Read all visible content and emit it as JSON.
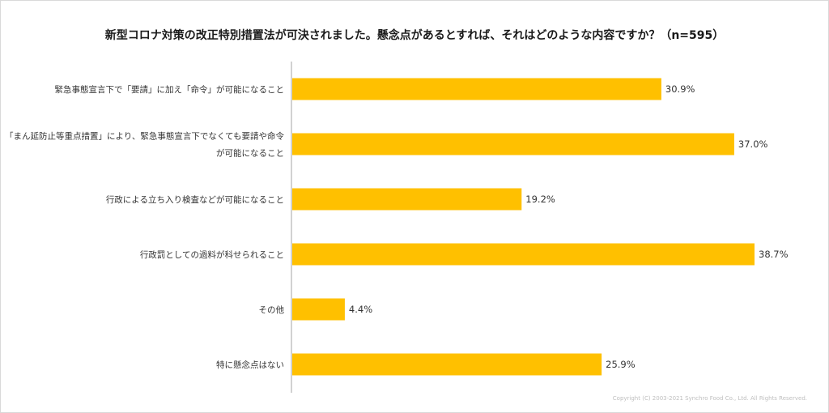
{
  "chart_data": {
    "type": "bar",
    "orientation": "horizontal",
    "title": "新型コロナ対策の改正特別措置法が可決されました。懸念点があるとすれば、それはどのような内容ですか？（n=595）",
    "categories": [
      [
        "緊急事態宣言下で「要請」に加え「命令」が可能になること"
      ],
      [
        "「まん延防止等重点措置」により、緊急事態宣言下でなくても要請や命令",
        "が可能になること"
      ],
      [
        "行政による立ち入り検査などが可能になること"
      ],
      [
        "行政罰としての過料が科せられること"
      ],
      [
        "その他"
      ],
      [
        "特に懸念点はない"
      ]
    ],
    "values": [
      30.9,
      37.0,
      19.2,
      38.7,
      4.4,
      25.9
    ],
    "value_labels": [
      "30.9%",
      "37.0%",
      "19.2%",
      "38.7%",
      "4.4%",
      "25.9%"
    ],
    "unit": "%",
    "xlim": [
      0,
      40
    ],
    "grid": false,
    "legend": "none",
    "bar_color": "#FFC000",
    "axis_color": "#A6A6A6"
  },
  "copyright": "Copyright (C) 2003-2021  Synchro Food Co., Ltd. All Rights Reserved."
}
